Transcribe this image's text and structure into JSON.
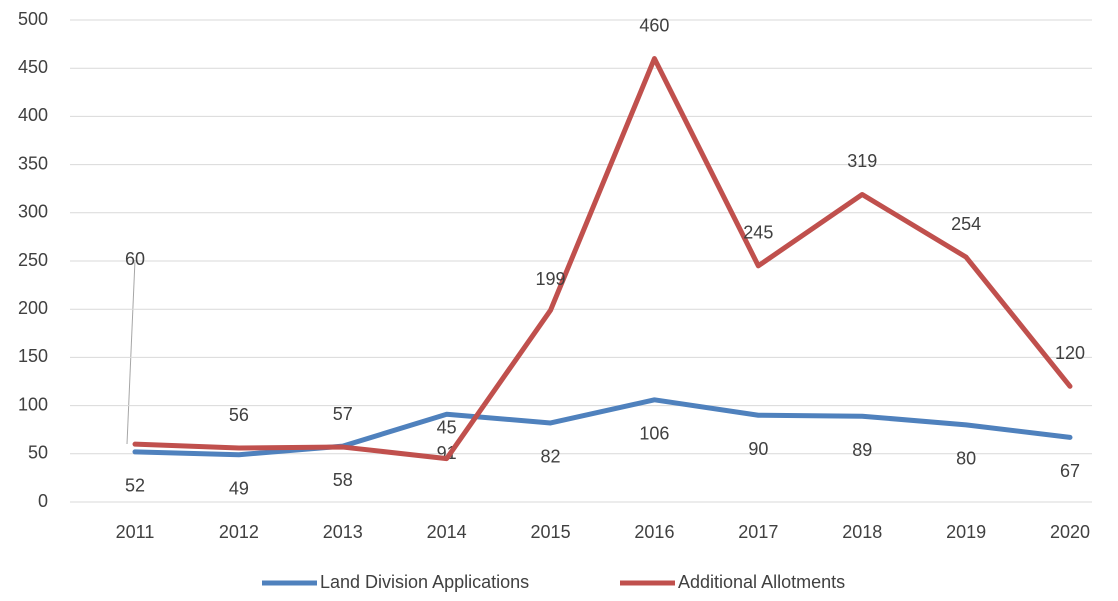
{
  "chart_data": {
    "type": "line",
    "categories": [
      "2011",
      "2012",
      "2013",
      "2014",
      "2015",
      "2016",
      "2017",
      "2018",
      "2019",
      "2020"
    ],
    "series": [
      {
        "name": "Land Division Applications",
        "color": "#4f81bd",
        "values": [
          52,
          49,
          58,
          91,
          82,
          106,
          90,
          89,
          80,
          67
        ]
      },
      {
        "name": "Additional Allotments",
        "color": "#c0504d",
        "values": [
          60,
          56,
          57,
          45,
          199,
          460,
          245,
          319,
          254,
          120
        ]
      }
    ],
    "ylim": [
      0,
      500
    ],
    "yticks": [
      0,
      50,
      100,
      150,
      200,
      250,
      300,
      350,
      400,
      450,
      500
    ],
    "grid": true,
    "legend": "bottom"
  }
}
